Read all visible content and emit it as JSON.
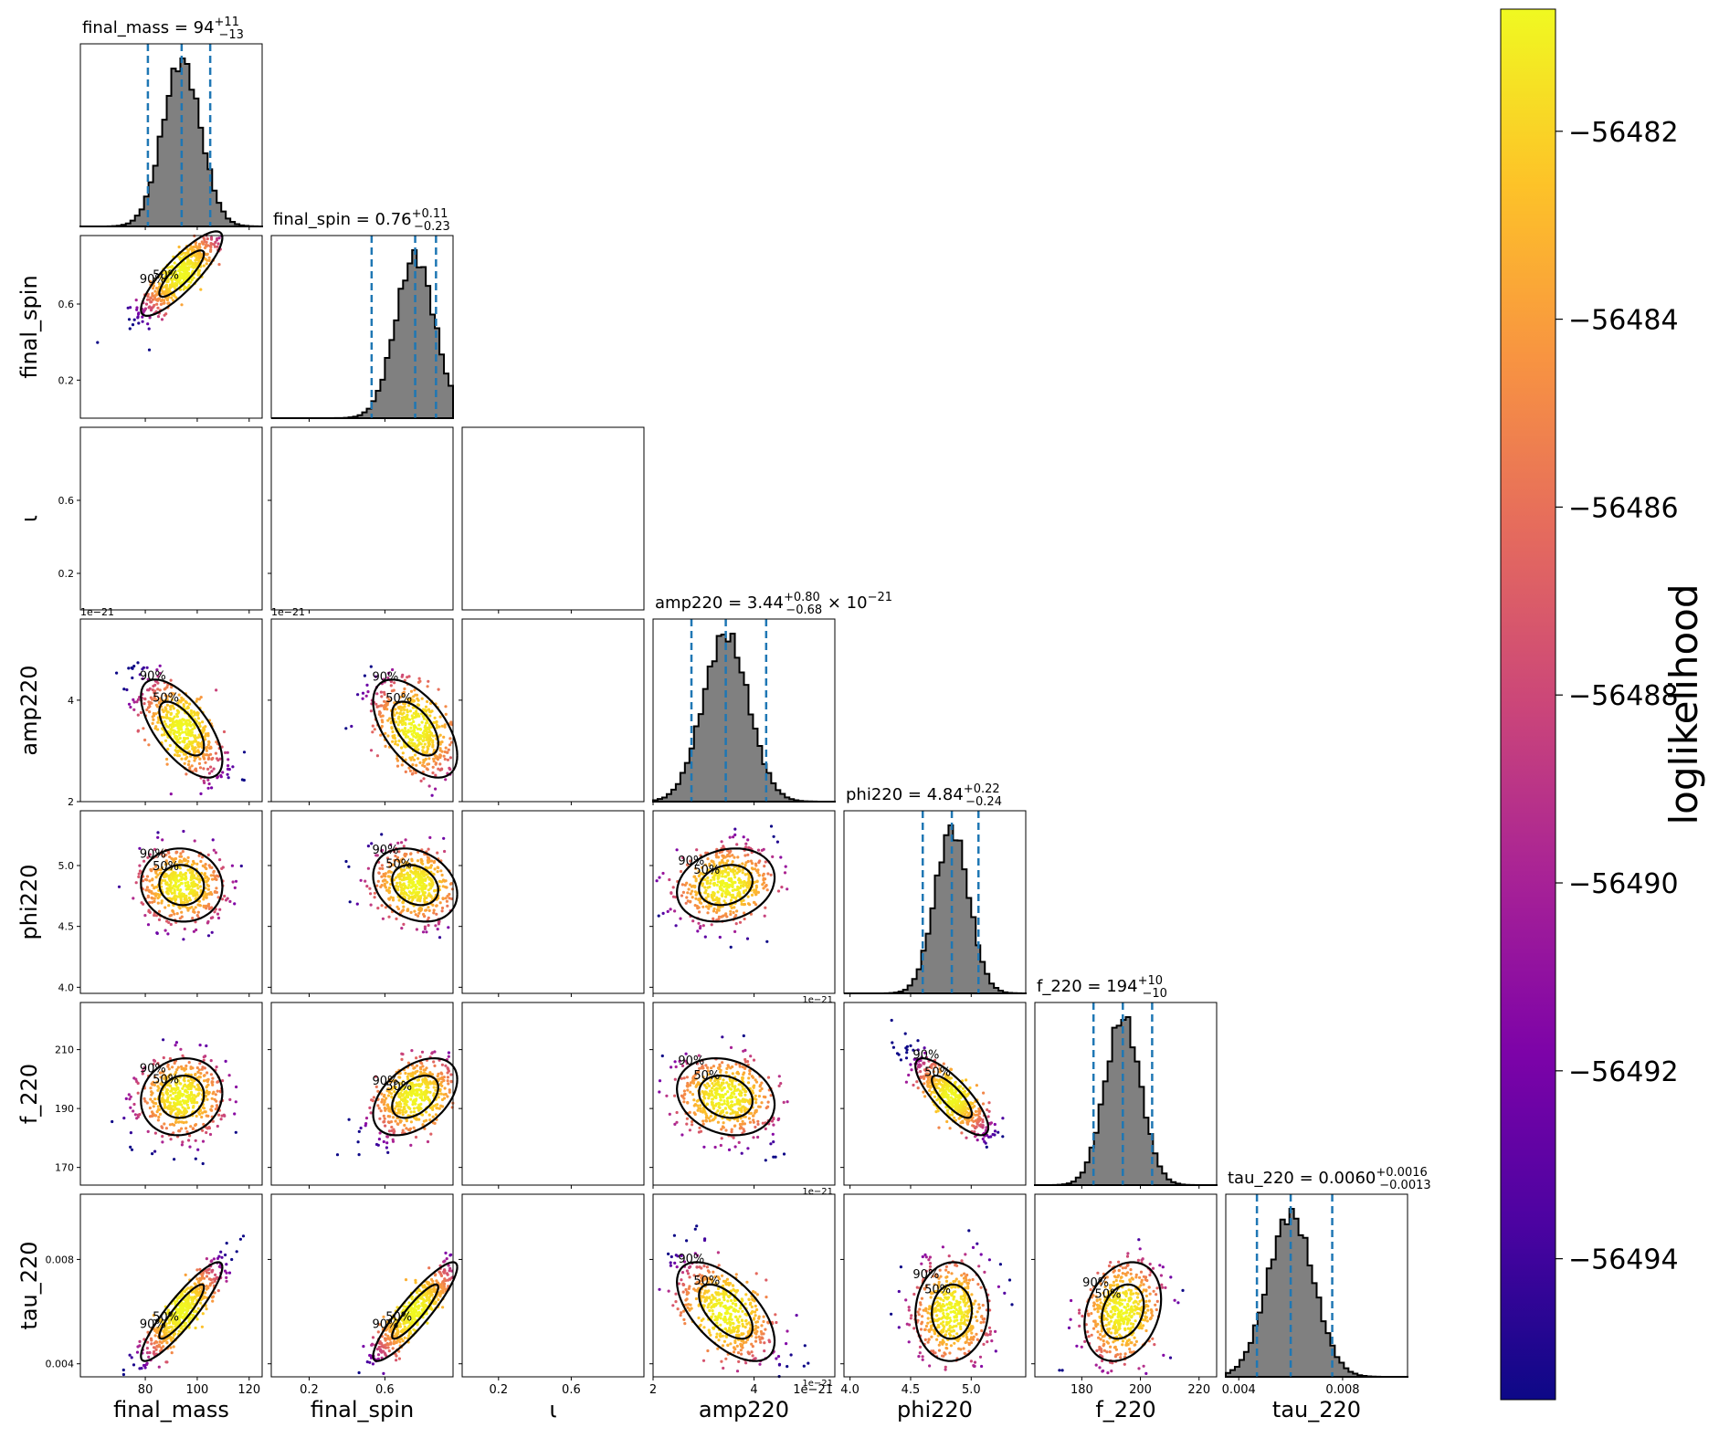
{
  "chart_data": {
    "type": "corner",
    "parameters": [
      {
        "key": "final_mass",
        "label": "final_mass",
        "range": [
          55,
          125
        ],
        "ticks": [
          80,
          100,
          120
        ],
        "tick_labels": [
          "80",
          "100",
          "120"
        ],
        "title": "final_mass = 94",
        "title_sup": "+11",
        "title_sub": "−13",
        "median": 94,
        "q_lo": 81,
        "q_hi": 105
      },
      {
        "key": "final_spin",
        "label": "final_spin",
        "range": [
          0,
          0.96
        ],
        "ticks": [
          0.2,
          0.6
        ],
        "tick_labels": [
          "0.2",
          "0.6"
        ],
        "title": "final_spin = 0.76",
        "title_sup": "+0.11",
        "title_sub": "−0.23",
        "median": 0.76,
        "q_lo": 0.53,
        "q_hi": 0.87
      },
      {
        "key": "iota",
        "label": "ι",
        "range": [
          0,
          1.0
        ],
        "ticks": [
          0.2,
          0.6
        ],
        "tick_labels": [
          "0.2",
          "0.6"
        ],
        "title": "",
        "title_sup": "",
        "title_sub": "",
        "median": null,
        "q_lo": null,
        "q_hi": null
      },
      {
        "key": "amp220",
        "label": "amp220",
        "exp_label": "1e−21",
        "range": [
          2.0,
          5.6
        ],
        "ticks": [
          2,
          4
        ],
        "tick_labels": [
          "2",
          "4"
        ],
        "title": "amp220 = 3.44",
        "title_sup": "+0.80",
        "title_sub": "−0.68",
        "title_suffix": " × 10",
        "title_suffix_sup": "−21",
        "median": 3.44,
        "q_lo": 2.76,
        "q_hi": 4.24
      },
      {
        "key": "phi220",
        "label": "phi220",
        "range": [
          3.95,
          5.45
        ],
        "ticks": [
          4.0,
          4.5,
          5.0
        ],
        "tick_labels": [
          "4.0",
          "4.5",
          "5.0"
        ],
        "title": "phi220 = 4.84",
        "title_sup": "+0.22",
        "title_sub": "−0.24",
        "median": 4.84,
        "q_lo": 4.6,
        "q_hi": 5.06
      },
      {
        "key": "f_220",
        "label": "f_220",
        "range": [
          164,
          226
        ],
        "ticks": [
          180,
          200,
          220
        ],
        "tick_labels": [
          "180",
          "200",
          "220"
        ],
        "y_tick_labels_override": {
          "ticks": [
            170,
            190,
            210
          ],
          "labels": [
            "170",
            "190",
            "210"
          ]
        },
        "title": "f_220 = 194",
        "title_sup": "+10",
        "title_sub": "−10",
        "median": 194,
        "q_lo": 184,
        "q_hi": 204
      },
      {
        "key": "tau_220",
        "label": "tau_220",
        "range": [
          0.0035,
          0.0105
        ],
        "ticks": [
          0.004,
          0.008
        ],
        "tick_labels": [
          "0.004",
          "0.008"
        ],
        "title": "tau_220 = 0.0060",
        "title_sup": "+0.0016",
        "title_sub": "−0.0013",
        "median": 0.006,
        "q_lo": 0.0047,
        "q_hi": 0.0076
      }
    ],
    "contour_labels": [
      "50%",
      "90%"
    ],
    "colorbar": {
      "label": "loglikelihood",
      "range": [
        -56495.5,
        -56480.7
      ],
      "ticks": [
        -56482,
        -56484,
        -56486,
        -56488,
        -56490,
        -56492,
        -56494
      ],
      "tick_labels": [
        "−56482",
        "−56484",
        "−56486",
        "−56488",
        "−56490",
        "−56492",
        "−56494"
      ],
      "colormap": "plasma"
    },
    "colors": {
      "histogram_fill": "#808080",
      "histogram_edge": "#000000",
      "quantile_lines": "#1f77b4",
      "contour": "#000000"
    }
  }
}
